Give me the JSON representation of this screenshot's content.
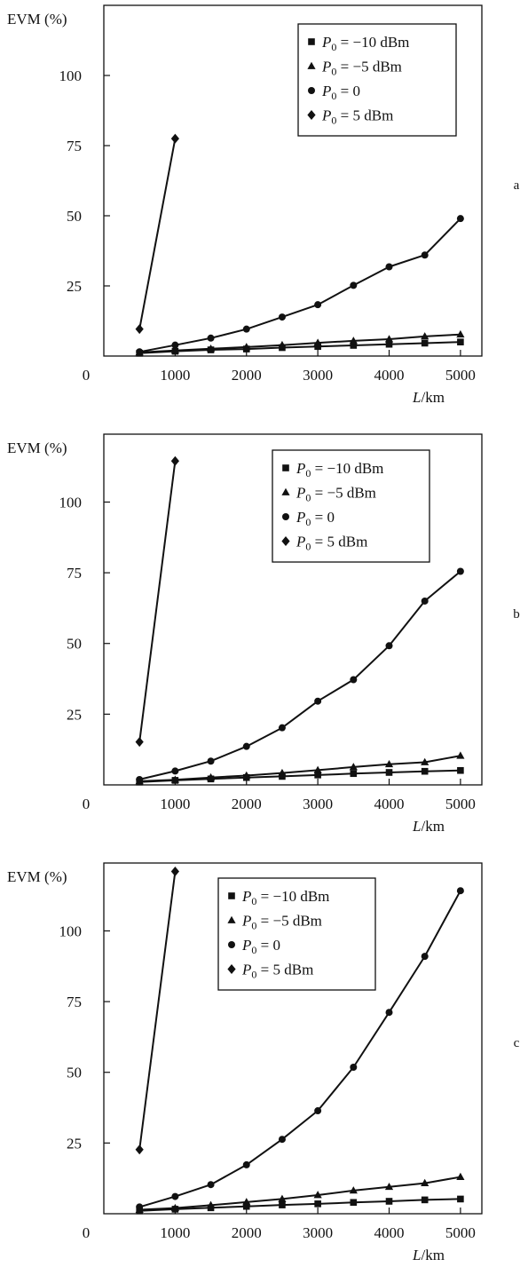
{
  "chart_data": [
    {
      "panel": "a",
      "type": "line",
      "ylabel": "EVM (%)",
      "xlabel_var": "L",
      "xlabel_unit": "/km",
      "x_ticks": [
        1000,
        2000,
        3000,
        4000,
        5000
      ],
      "x_origin_label": "0",
      "y_ticks": [
        25,
        50,
        75,
        100
      ],
      "xlim": [
        0,
        5300
      ],
      "ylim": [
        0,
        125
      ],
      "grid": false,
      "legend_position": "top-right",
      "series": [
        {
          "name": "P0 = −10 dBm",
          "marker": "square",
          "x": [
            500,
            1000,
            1500,
            2000,
            2500,
            3000,
            3500,
            4000,
            4500,
            5000
          ],
          "y": [
            1.0,
            1.7,
            2.2,
            2.5,
            3.0,
            3.4,
            3.8,
            4.2,
            4.6,
            5.0
          ]
        },
        {
          "name": "P0 = −5 dBm",
          "marker": "triangle",
          "x": [
            500,
            1000,
            1500,
            2000,
            2500,
            3000,
            3500,
            4000,
            4500,
            5000
          ],
          "y": [
            1.3,
            2.0,
            2.6,
            3.2,
            3.9,
            4.7,
            5.4,
            6.0,
            7.0,
            7.7
          ]
        },
        {
          "name": "P0 = 0",
          "marker": "circle",
          "x": [
            500,
            1000,
            1500,
            2000,
            2500,
            3000,
            3500,
            4000,
            4500,
            5000
          ],
          "y": [
            1.5,
            3.9,
            6.4,
            9.6,
            13.9,
            18.3,
            25.2,
            31.8,
            36.0,
            49.0
          ]
        },
        {
          "name": "P0 = 5 dBm",
          "marker": "diamond",
          "x": [
            500,
            1000
          ],
          "y": [
            9.6,
            77.5
          ]
        }
      ]
    },
    {
      "panel": "b",
      "type": "line",
      "ylabel": "EVM (%)",
      "xlabel_var": "L",
      "xlabel_unit": "/km",
      "x_ticks": [
        1000,
        2000,
        3000,
        4000,
        5000
      ],
      "x_origin_label": "0",
      "y_ticks": [
        25,
        50,
        75,
        100
      ],
      "xlim": [
        0,
        5300
      ],
      "ylim": [
        0,
        124
      ],
      "grid": false,
      "legend_position": "top-right",
      "series": [
        {
          "name": "P0 = −10 dBm",
          "marker": "square",
          "x": [
            500,
            1000,
            1500,
            2000,
            2500,
            3000,
            3500,
            4000,
            4500,
            5000
          ],
          "y": [
            1.0,
            1.6,
            2.1,
            2.6,
            3.0,
            3.5,
            4.0,
            4.4,
            4.8,
            5.1
          ]
        },
        {
          "name": "P0 = −5 dBm",
          "marker": "triangle",
          "x": [
            500,
            1000,
            1500,
            2000,
            2500,
            3000,
            3500,
            4000,
            4500,
            5000
          ],
          "y": [
            1.3,
            1.8,
            2.6,
            3.3,
            4.2,
            5.2,
            6.3,
            7.3,
            8.0,
            10.3
          ]
        },
        {
          "name": "P0 = 0",
          "marker": "circle",
          "x": [
            500,
            1000,
            1500,
            2000,
            2500,
            3000,
            3500,
            4000,
            4500,
            5000
          ],
          "y": [
            1.9,
            4.9,
            8.4,
            13.6,
            20.2,
            29.6,
            37.2,
            49.2,
            65.0,
            75.5
          ]
        },
        {
          "name": "P0 = 5 dBm",
          "marker": "diamond",
          "x": [
            500,
            1000
          ],
          "y": [
            15.2,
            114.5
          ]
        }
      ]
    },
    {
      "panel": "c",
      "type": "line",
      "ylabel": "EVM (%)",
      "xlabel_var": "L",
      "xlabel_unit": "/km",
      "x_ticks": [
        1000,
        2000,
        3000,
        4000,
        5000
      ],
      "x_origin_label": "0",
      "y_ticks": [
        25,
        50,
        75,
        100
      ],
      "xlim": [
        0,
        5300
      ],
      "ylim": [
        0,
        124
      ],
      "grid": false,
      "legend_position": "top-left",
      "series": [
        {
          "name": "P0 = −10 dBm",
          "marker": "square",
          "x": [
            500,
            1000,
            1500,
            2000,
            2500,
            3000,
            3500,
            4000,
            4500,
            5000
          ],
          "y": [
            1.0,
            1.6,
            2.1,
            2.6,
            3.1,
            3.5,
            4.0,
            4.4,
            4.9,
            5.2
          ]
        },
        {
          "name": "P0 = −5 dBm",
          "marker": "triangle",
          "x": [
            500,
            1000,
            1500,
            2000,
            2500,
            3000,
            3500,
            4000,
            4500,
            5000
          ],
          "y": [
            1.4,
            2.0,
            3.0,
            4.1,
            5.2,
            6.6,
            8.2,
            9.5,
            10.8,
            13.0
          ]
        },
        {
          "name": "P0 = 0",
          "marker": "circle",
          "x": [
            500,
            1000,
            1500,
            2000,
            2500,
            3000,
            3500,
            4000,
            4500,
            5000
          ],
          "y": [
            2.4,
            6.1,
            10.3,
            17.3,
            26.3,
            36.4,
            51.8,
            71.2,
            91.0,
            114.2
          ]
        },
        {
          "name": "P0 = 5 dBm",
          "marker": "diamond",
          "x": [
            500,
            1000
          ],
          "y": [
            22.7,
            121.0
          ]
        }
      ]
    }
  ],
  "legend": {
    "items": [
      {
        "marker": "square",
        "var": "P",
        "sub": "0",
        "rest": " = −10 dBm"
      },
      {
        "marker": "triangle",
        "var": "P",
        "sub": "0",
        "rest": " = −5 dBm"
      },
      {
        "marker": "circle",
        "var": "P",
        "sub": "0",
        "rest": " = 0"
      },
      {
        "marker": "diamond",
        "var": "P",
        "sub": "0",
        "rest": " = 5 dBm"
      }
    ]
  },
  "colors": {
    "line": "#111111",
    "frame": "#111111",
    "background": "#ffffff"
  }
}
